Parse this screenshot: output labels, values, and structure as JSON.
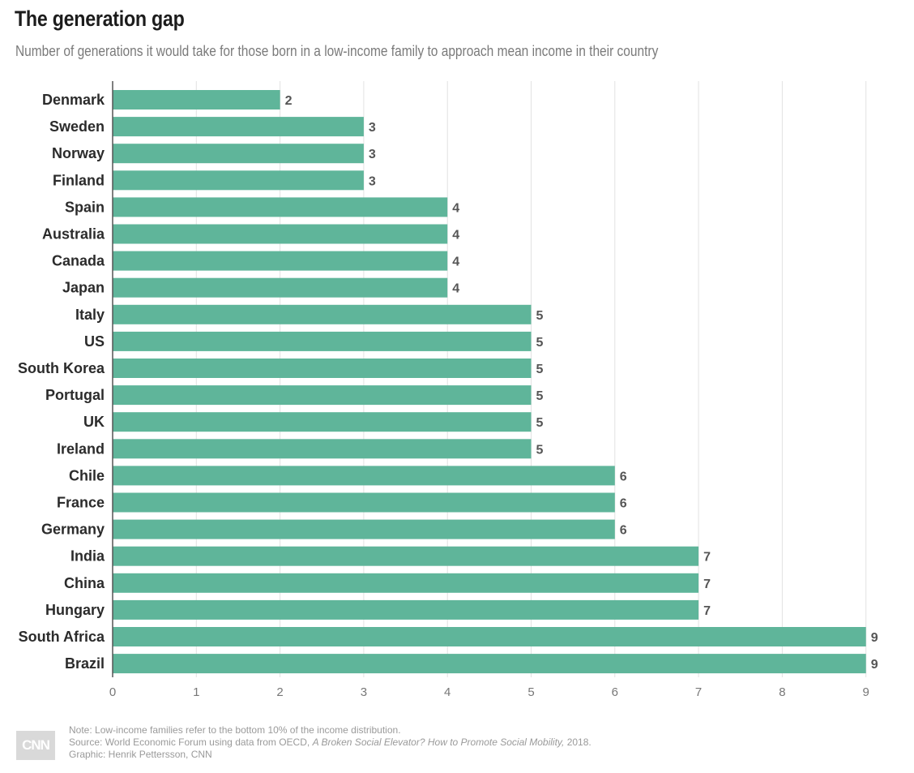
{
  "chart_data": {
    "type": "bar",
    "orientation": "horizontal",
    "title": "The generation gap",
    "subtitle": "Number of generations it would take for those born in a low-income family to approach mean income in their country",
    "categories": [
      "Denmark",
      "Sweden",
      "Norway",
      "Finland",
      "Spain",
      "Australia",
      "Canada",
      "Japan",
      "Italy",
      "US",
      "South Korea",
      "Portugal",
      "UK",
      "Ireland",
      "Chile",
      "France",
      "Germany",
      "India",
      "China",
      "Hungary",
      "South Africa",
      "Brazil"
    ],
    "values": [
      2,
      3,
      3,
      3,
      4,
      4,
      4,
      4,
      5,
      5,
      5,
      5,
      5,
      5,
      6,
      6,
      6,
      7,
      7,
      7,
      9,
      9
    ],
    "xlim": [
      0,
      9
    ],
    "xticks": [
      0,
      1,
      2,
      3,
      4,
      5,
      6,
      7,
      8,
      9
    ],
    "xlabel": "",
    "ylabel": "",
    "grid": true,
    "bar_color": "#5fb59a"
  },
  "footer": {
    "logo_text": "CNN",
    "note": "Note: Low-income families refer to the bottom 10% of the income distribution.",
    "source_prefix": "Source: World Economic Forum using data from OECD, ",
    "source_title": "A Broken Social Elevator? How to Promote Social Mobility,",
    "source_suffix": " 2018.",
    "graphic": "Graphic: Henrik Pettersson, CNN"
  }
}
